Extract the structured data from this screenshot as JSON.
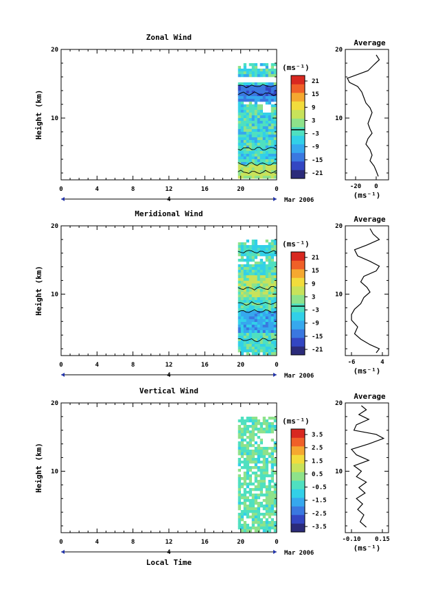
{
  "page": {
    "xlabel": "Local Time",
    "date_label": "Mar 2006"
  },
  "chart_data": [
    {
      "type": "heatmap",
      "title": "Zonal Wind",
      "ylabel": "Height (km)",
      "x_ticks": [
        "0",
        "4",
        "8",
        "12",
        "16",
        "20",
        "0"
      ],
      "day_label": "4",
      "y_ticks": [
        "20",
        "10"
      ],
      "ylim": [
        1,
        20
      ],
      "xlim": [
        0,
        24
      ],
      "colorbar": {
        "label": "(ms⁻¹)",
        "ticks": [
          "21",
          "15",
          "9",
          "3",
          "-3",
          "-9",
          "-15",
          "-21"
        ],
        "range": [
          -24,
          24
        ],
        "contour": 0
      },
      "data_time_range": [
        19,
        24
      ],
      "side_profile": {
        "title": "Average",
        "xlabel": "(ms⁻¹)",
        "x_ticks": [
          "-20",
          "0"
        ],
        "y_ticks": [
          "20",
          "10"
        ],
        "xlim": [
          -30,
          12
        ],
        "points": [
          [
            0,
            19.2
          ],
          [
            3,
            18.5
          ],
          [
            -2,
            17.8
          ],
          [
            -8,
            16.9
          ],
          [
            -28,
            15.8
          ],
          [
            -26,
            15.2
          ],
          [
            -18,
            14.6
          ],
          [
            -14,
            13.8
          ],
          [
            -12,
            13.0
          ],
          [
            -10,
            12.2
          ],
          [
            -6,
            11.5
          ],
          [
            -4,
            10.8
          ],
          [
            -6,
            10.0
          ],
          [
            -8,
            9.2
          ],
          [
            -6,
            8.4
          ],
          [
            -4,
            7.8
          ],
          [
            -8,
            7.0
          ],
          [
            -10,
            6.2
          ],
          [
            -6,
            5.4
          ],
          [
            -4,
            4.6
          ],
          [
            -6,
            3.8
          ],
          [
            -2,
            3.0
          ],
          [
            0,
            2.3
          ],
          [
            2,
            1.5
          ]
        ]
      }
    },
    {
      "type": "heatmap",
      "title": "Meridional Wind",
      "ylabel": "Height (km)",
      "x_ticks": [
        "0",
        "4",
        "8",
        "12",
        "16",
        "20",
        "0"
      ],
      "day_label": "4",
      "y_ticks": [
        "20",
        "10"
      ],
      "ylim": [
        1,
        20
      ],
      "xlim": [
        0,
        24
      ],
      "colorbar": {
        "label": "(ms⁻¹)",
        "ticks": [
          "21",
          "15",
          "9",
          "3",
          "-3",
          "-9",
          "-15",
          "-21"
        ],
        "range": [
          -24,
          24
        ],
        "contour": 0
      },
      "data_time_range": [
        19,
        24
      ],
      "side_profile": {
        "title": "Average",
        "xlabel": "(ms⁻¹)",
        "x_ticks": [
          "-6",
          "4"
        ],
        "y_ticks": [
          "20",
          "10"
        ],
        "xlim": [
          -8,
          6
        ],
        "points": [
          [
            0,
            19.6
          ],
          [
            1,
            18.8
          ],
          [
            3,
            18.0
          ],
          [
            -1,
            17.2
          ],
          [
            -5,
            16.5
          ],
          [
            -4,
            15.6
          ],
          [
            0,
            14.8
          ],
          [
            3,
            14.1
          ],
          [
            2,
            13.4
          ],
          [
            -2,
            12.6
          ],
          [
            -3,
            11.8
          ],
          [
            -1,
            11.0
          ],
          [
            0,
            10.3
          ],
          [
            -2,
            9.5
          ],
          [
            -3,
            8.6
          ],
          [
            -5,
            7.8
          ],
          [
            -6,
            7.0
          ],
          [
            -6,
            6.2
          ],
          [
            -4,
            5.2
          ],
          [
            -5,
            4.2
          ],
          [
            -3,
            3.4
          ],
          [
            0,
            2.6
          ],
          [
            3,
            2.0
          ],
          [
            2,
            1.4
          ]
        ]
      }
    },
    {
      "type": "heatmap",
      "title": "Vertical Wind",
      "ylabel": "Height (km)",
      "x_ticks": [
        "0",
        "4",
        "8",
        "12",
        "16",
        "20",
        "0"
      ],
      "day_label": "4",
      "y_ticks": [
        "20",
        "10"
      ],
      "ylim": [
        1,
        20
      ],
      "xlim": [
        0,
        24
      ],
      "colorbar": {
        "label": "(ms⁻¹)",
        "ticks": [
          "3.5",
          "2.5",
          "1.5",
          "0.5",
          "-0.5",
          "-1.5",
          "-2.5",
          "-3.5"
        ],
        "range": [
          -4,
          4
        ],
        "contour": null
      },
      "data_time_range": [
        19,
        24
      ],
      "side_profile": {
        "title": "Average",
        "xlabel": "(ms⁻¹)",
        "x_ticks": [
          "-0.10",
          "0.15"
        ],
        "y_ticks": [
          "20",
          "10"
        ],
        "xlim": [
          -0.15,
          0.2
        ],
        "points": [
          [
            -0.02,
            19.6
          ],
          [
            0.02,
            19.0
          ],
          [
            -0.04,
            18.3
          ],
          [
            0.04,
            17.6
          ],
          [
            -0.06,
            16.8
          ],
          [
            -0.08,
            16.0
          ],
          [
            0.1,
            15.4
          ],
          [
            0.16,
            14.8
          ],
          [
            0.04,
            14.0
          ],
          [
            -0.1,
            13.2
          ],
          [
            -0.06,
            12.4
          ],
          [
            0.04,
            11.6
          ],
          [
            -0.08,
            10.8
          ],
          [
            -0.02,
            10.0
          ],
          [
            -0.06,
            9.2
          ],
          [
            0.02,
            8.4
          ],
          [
            -0.04,
            7.6
          ],
          [
            0.01,
            6.8
          ],
          [
            -0.06,
            6.0
          ],
          [
            -0.01,
            5.2
          ],
          [
            -0.05,
            4.4
          ],
          [
            0.0,
            3.6
          ],
          [
            -0.03,
            2.6
          ],
          [
            0.02,
            1.8
          ]
        ]
      }
    }
  ]
}
